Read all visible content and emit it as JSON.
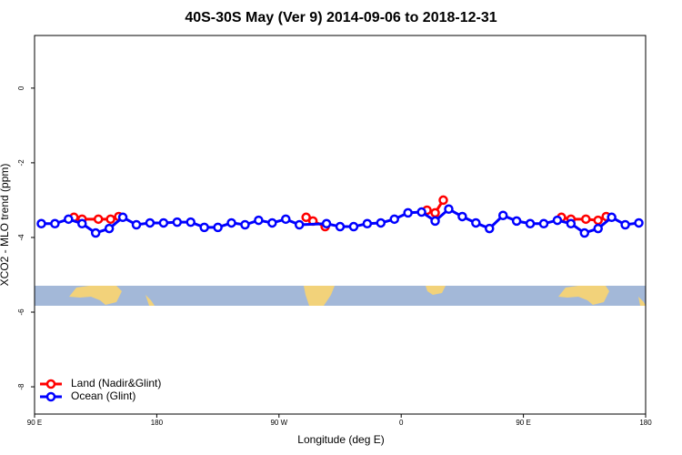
{
  "chart_data": {
    "type": "line",
    "title": "40S-30S May (Ver 9)   2014-09-06 to 2018-12-31",
    "x_label": "Longitude (deg E)",
    "y_label": "XCO2 - MLO trend (ppm)",
    "xlim": [
      90,
      540
    ],
    "ylim": [
      -8.73,
      1.41
    ],
    "xticks": [
      {
        "value": 90,
        "label": "90 E"
      },
      {
        "value": 180,
        "label": "180"
      },
      {
        "value": 270,
        "label": "90 W"
      },
      {
        "value": 360,
        "label": "0"
      },
      {
        "value": 450,
        "label": "90 E"
      },
      {
        "value": 540,
        "label": "180"
      }
    ],
    "yticks": [
      0,
      -2,
      -4,
      -6,
      -8
    ],
    "legend": "bottom-left",
    "series": [
      {
        "name": "Land (Nadir&Glint)",
        "color": "#ff0000",
        "x": [
          119,
          125,
          137,
          146,
          152,
          null,
          290,
          295,
          304,
          null,
          379,
          385,
          391,
          null,
          478,
          485,
          496,
          505,
          511
        ],
        "values": [
          -3.46,
          -3.51,
          -3.51,
          -3.51,
          -3.44,
          null,
          -3.46,
          -3.56,
          -3.71,
          null,
          -3.27,
          -3.34,
          -3.0,
          null,
          -3.46,
          -3.51,
          -3.51,
          -3.54,
          -3.44
        ]
      },
      {
        "name": "Ocean (Glint)",
        "color": "#0000ff",
        "x": [
          95,
          105,
          115,
          125,
          135,
          145,
          155,
          165,
          175,
          185,
          195,
          205,
          215,
          225,
          235,
          245,
          255,
          265,
          275,
          285,
          305,
          315,
          325,
          335,
          345,
          355,
          365,
          375,
          385,
          395,
          405,
          415,
          425,
          435,
          445,
          455,
          465,
          475,
          485,
          495,
          505,
          515,
          525,
          535
        ],
        "values": [
          -3.63,
          -3.63,
          -3.51,
          -3.63,
          -3.88,
          -3.76,
          -3.46,
          -3.66,
          -3.61,
          -3.61,
          -3.59,
          -3.59,
          -3.73,
          -3.73,
          -3.61,
          -3.66,
          -3.54,
          -3.61,
          -3.51,
          -3.66,
          -3.63,
          -3.71,
          -3.71,
          -3.63,
          -3.61,
          -3.51,
          -3.34,
          -3.32,
          -3.56,
          -3.24,
          -3.44,
          -3.61,
          -3.76,
          -3.41,
          -3.56,
          -3.63,
          -3.63,
          -3.54,
          -3.63,
          -3.88,
          -3.76,
          -3.46,
          -3.66,
          -3.61
        ]
      }
    ]
  }
}
